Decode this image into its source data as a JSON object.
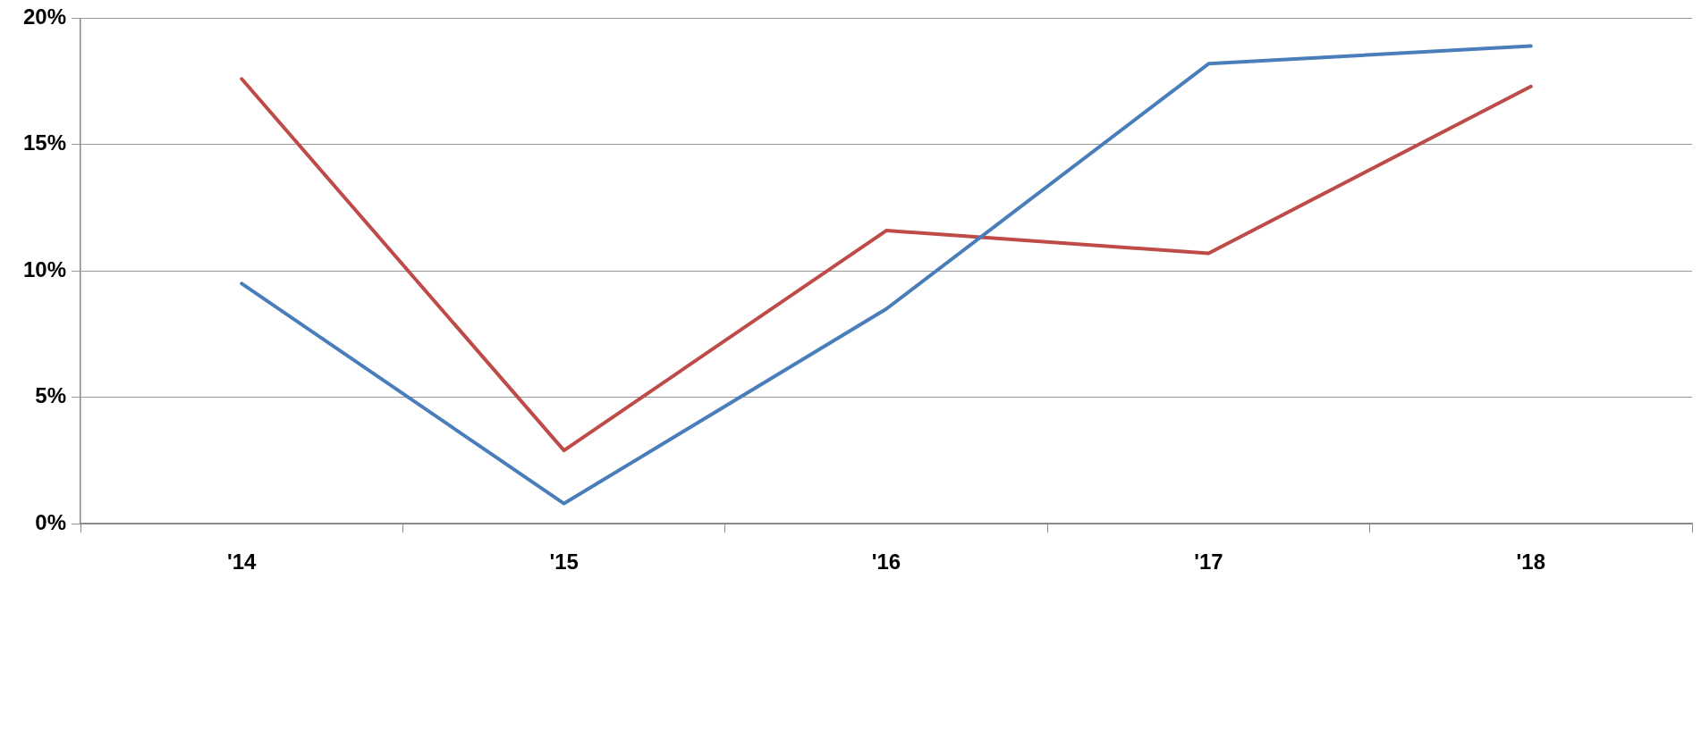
{
  "chart_data": {
    "type": "line",
    "categories": [
      "'14",
      "'15",
      "'16",
      "'17",
      "'18"
    ],
    "series": [
      {
        "color": "#4a7ebb",
        "values": [
          9.5,
          0.8,
          8.5,
          18.2,
          18.9
        ]
      },
      {
        "color": "#be4b48",
        "values": [
          17.6,
          2.9,
          11.6,
          10.7,
          17.3
        ]
      }
    ],
    "ylim": [
      0,
      20
    ],
    "yticks": [
      {
        "value": 0,
        "label": "0%"
      },
      {
        "value": 5,
        "label": "5%"
      },
      {
        "value": 10,
        "label": "10%"
      },
      {
        "value": 15,
        "label": "15%"
      },
      {
        "value": 20,
        "label": "20%"
      }
    ],
    "grid": "y",
    "legend": false,
    "marker": "none",
    "line_style": "solid"
  }
}
